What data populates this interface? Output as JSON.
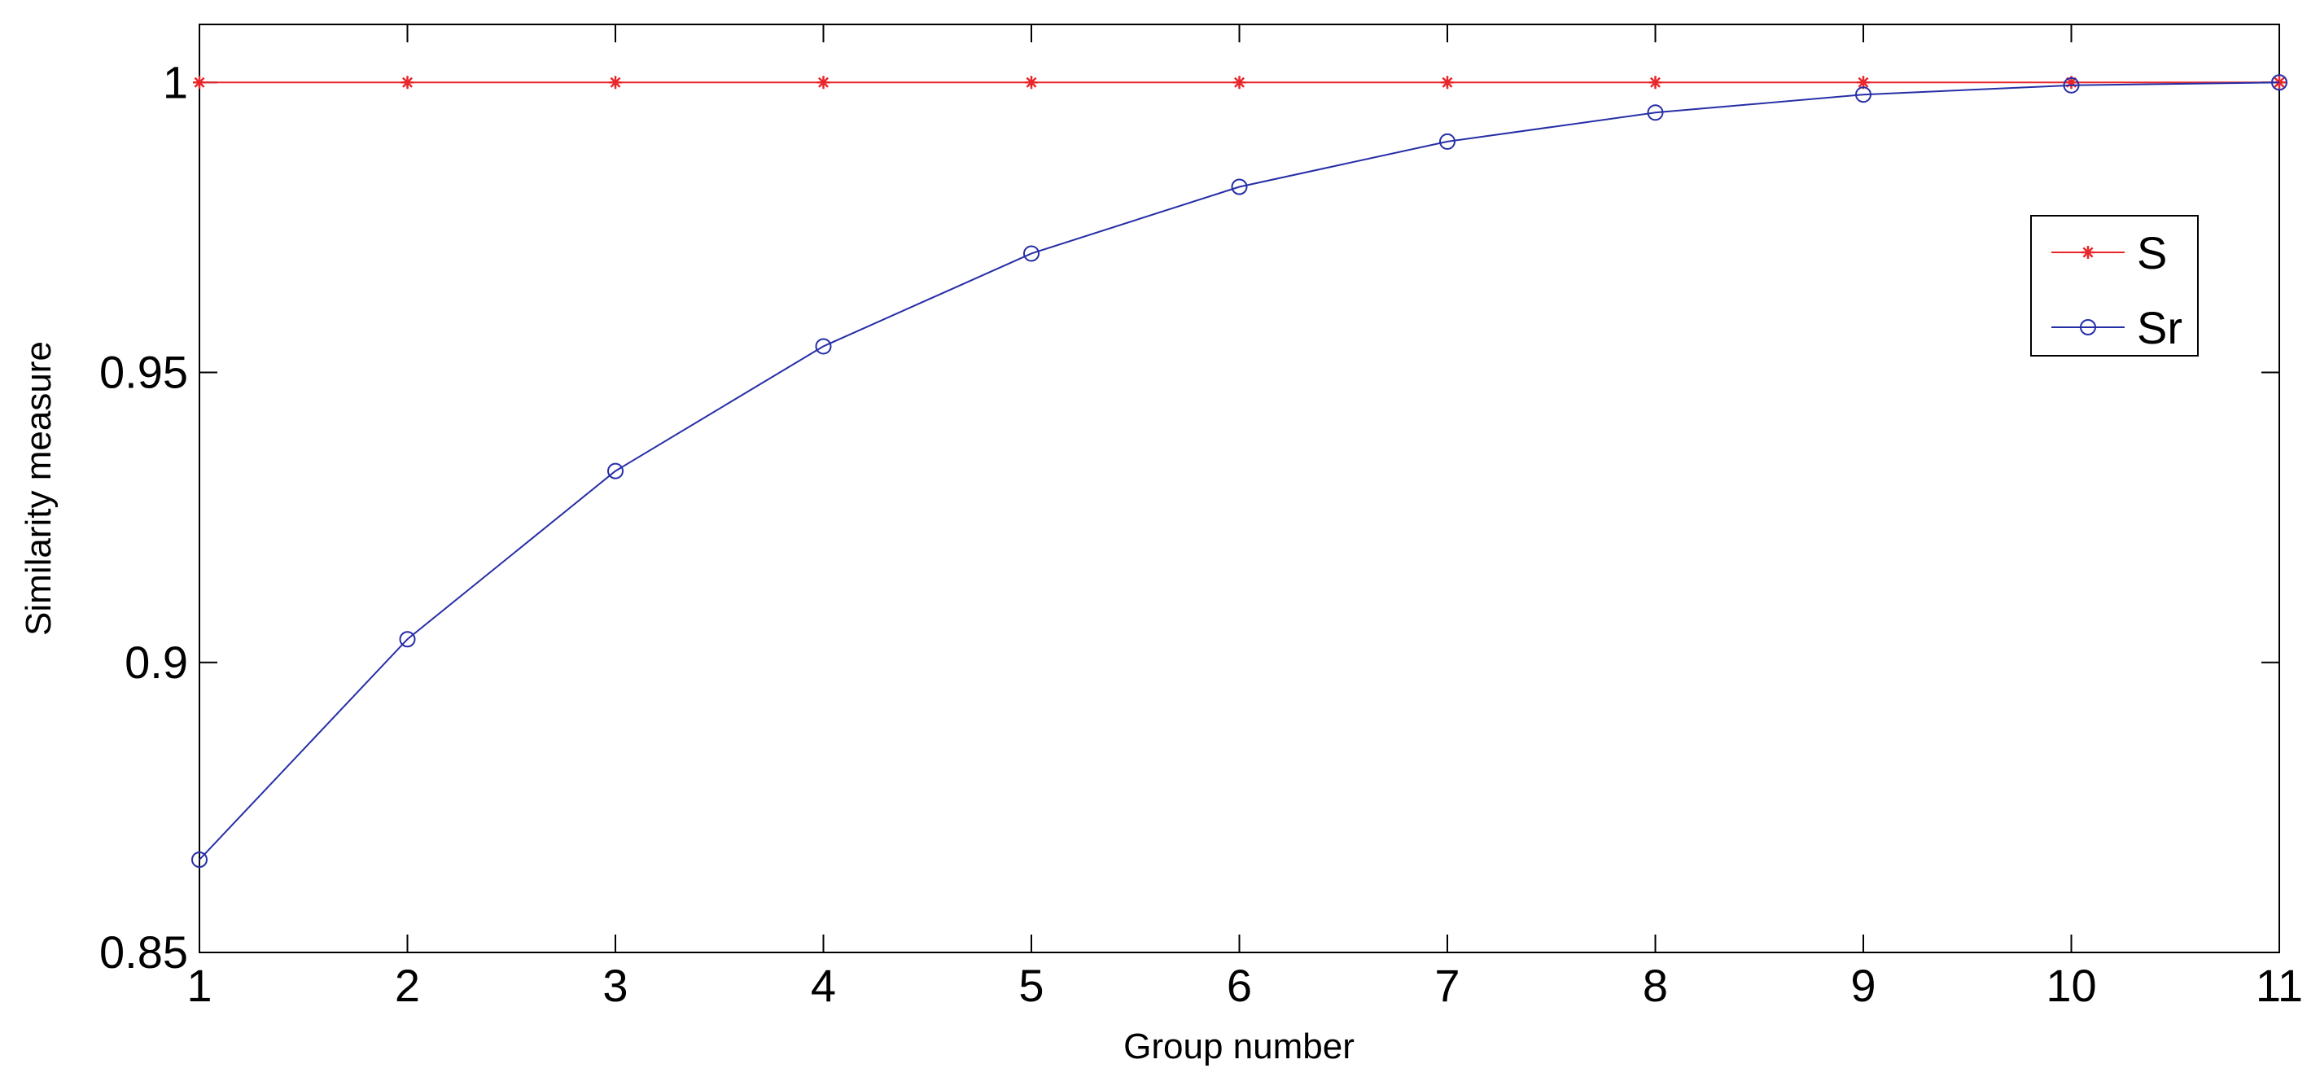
{
  "chart_data": {
    "type": "line",
    "title": "",
    "xlabel": "Group number",
    "ylabel": "Similarity measure",
    "x": [
      1,
      2,
      3,
      4,
      5,
      6,
      7,
      8,
      9,
      10,
      11
    ],
    "xlim": [
      1,
      11
    ],
    "ylim": [
      0.85,
      1.01
    ],
    "xticks": [
      "1",
      "2",
      "3",
      "4",
      "5",
      "6",
      "7",
      "8",
      "9",
      "10",
      "11"
    ],
    "yticks": [
      {
        "value": 0.85,
        "label": "0.85"
      },
      {
        "value": 0.9,
        "label": "0.9"
      },
      {
        "value": 0.95,
        "label": "0.95"
      },
      {
        "value": 1.0,
        "label": "1"
      }
    ],
    "grid": false,
    "legend_position": "upper-right",
    "series": [
      {
        "name": "S",
        "color": "#e8262b",
        "marker": "asterisk",
        "values": [
          1,
          1,
          1,
          1,
          1,
          1,
          1,
          1,
          1,
          1,
          1
        ]
      },
      {
        "name": "Sr",
        "color": "#262ea6",
        "marker": "circle",
        "values": [
          0.866,
          0.904,
          0.933,
          0.9545,
          0.9705,
          0.982,
          0.9898,
          0.9948,
          0.9979,
          0.9995,
          1.0
        ]
      }
    ]
  }
}
